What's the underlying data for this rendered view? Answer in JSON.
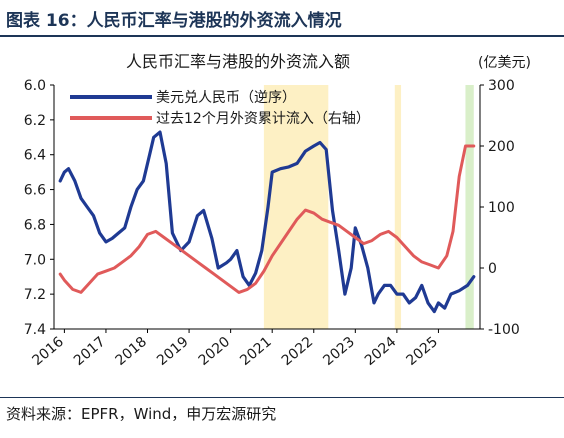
{
  "figure": {
    "title": "图表 16：人民币汇率与港股的外资流入情况",
    "source": "资料来源：EPFR，Wind，申万宏源研究"
  },
  "chart_data": {
    "type": "line",
    "title": "人民币汇率与港股的外资流入额",
    "y2_unit_label": "(亿美元)",
    "x_ticks": [
      "2016",
      "2017",
      "2018",
      "2019",
      "2020",
      "2021",
      "2022",
      "2023",
      "2024",
      "2025"
    ],
    "y_left": {
      "lim": [
        6.0,
        7.4
      ],
      "reversed": true,
      "ticks": [
        "6.0",
        "6.2",
        "6.4",
        "6.6",
        "6.8",
        "7.0",
        "7.2",
        "7.4"
      ]
    },
    "y_right": {
      "lim": [
        -100,
        300
      ],
      "ticks": [
        "300",
        "200",
        "100",
        "0",
        "-100"
      ]
    },
    "legend": {
      "position": "top-left"
    },
    "series": [
      {
        "name": "美元兑人民币（逆序）",
        "axis": "left",
        "color": "#1f3a93",
        "x": [
          2015.9,
          2016.0,
          2016.1,
          2016.25,
          2016.4,
          2016.55,
          2016.7,
          2016.85,
          2017.0,
          2017.15,
          2017.3,
          2017.45,
          2017.6,
          2017.75,
          2017.9,
          2018.05,
          2018.15,
          2018.3,
          2018.45,
          2018.6,
          2018.8,
          2019.0,
          2019.2,
          2019.35,
          2019.55,
          2019.7,
          2019.9,
          2020.0,
          2020.15,
          2020.3,
          2020.45,
          2020.6,
          2020.75,
          2020.9,
          2021.0,
          2021.2,
          2021.4,
          2021.6,
          2021.8,
          2022.0,
          2022.15,
          2022.3,
          2022.45,
          2022.6,
          2022.75,
          2022.9,
          2023.0,
          2023.15,
          2023.3,
          2023.45,
          2023.55,
          2023.7,
          2023.85,
          2024.0,
          2024.15,
          2024.3,
          2024.45,
          2024.6,
          2024.75,
          2024.9,
          2025.0,
          2025.15,
          2025.3,
          2025.5,
          2025.7,
          2025.85
        ],
        "values": [
          6.55,
          6.5,
          6.48,
          6.55,
          6.65,
          6.7,
          6.75,
          6.85,
          6.9,
          6.88,
          6.85,
          6.82,
          6.7,
          6.6,
          6.55,
          6.4,
          6.3,
          6.27,
          6.45,
          6.85,
          6.95,
          6.9,
          6.75,
          6.72,
          6.88,
          7.05,
          7.02,
          7.0,
          6.95,
          7.1,
          7.15,
          7.08,
          6.95,
          6.7,
          6.5,
          6.48,
          6.47,
          6.45,
          6.38,
          6.35,
          6.33,
          6.37,
          6.72,
          6.95,
          7.2,
          7.05,
          6.82,
          6.92,
          7.05,
          7.25,
          7.2,
          7.15,
          7.15,
          7.2,
          7.2,
          7.25,
          7.22,
          7.15,
          7.25,
          7.3,
          7.25,
          7.28,
          7.2,
          7.18,
          7.15,
          7.1
        ]
      },
      {
        "name": "过去12个月外资累计流入（右轴）",
        "axis": "right",
        "color": "#e05a5a",
        "x": [
          2015.9,
          2016.0,
          2016.2,
          2016.4,
          2016.6,
          2016.8,
          2017.0,
          2017.2,
          2017.4,
          2017.6,
          2017.8,
          2018.0,
          2018.2,
          2018.4,
          2018.6,
          2018.8,
          2019.0,
          2019.2,
          2019.4,
          2019.6,
          2019.8,
          2020.0,
          2020.2,
          2020.4,
          2020.6,
          2020.8,
          2021.0,
          2021.2,
          2021.4,
          2021.6,
          2021.8,
          2022.0,
          2022.2,
          2022.4,
          2022.6,
          2022.8,
          2023.0,
          2023.2,
          2023.4,
          2023.6,
          2023.8,
          2024.0,
          2024.2,
          2024.4,
          2024.6,
          2024.8,
          2025.0,
          2025.2,
          2025.35,
          2025.5,
          2025.65,
          2025.85
        ],
        "values": [
          -10,
          -20,
          -35,
          -40,
          -25,
          -10,
          -5,
          0,
          10,
          20,
          35,
          55,
          60,
          50,
          40,
          30,
          20,
          10,
          0,
          -10,
          -20,
          -30,
          -40,
          -35,
          -25,
          -5,
          20,
          40,
          60,
          80,
          95,
          90,
          80,
          75,
          70,
          60,
          50,
          40,
          45,
          55,
          60,
          50,
          35,
          20,
          10,
          5,
          0,
          20,
          60,
          150,
          200,
          200
        ]
      }
    ],
    "shaded_periods": [
      {
        "start": 2020.8,
        "end": 2022.35,
        "color": "#fdf0c4"
      },
      {
        "start": 2023.95,
        "end": 2024.1,
        "color": "#fdf0c4"
      },
      {
        "start": 2025.65,
        "end": 2025.85,
        "color": "#d9efc9"
      }
    ]
  }
}
